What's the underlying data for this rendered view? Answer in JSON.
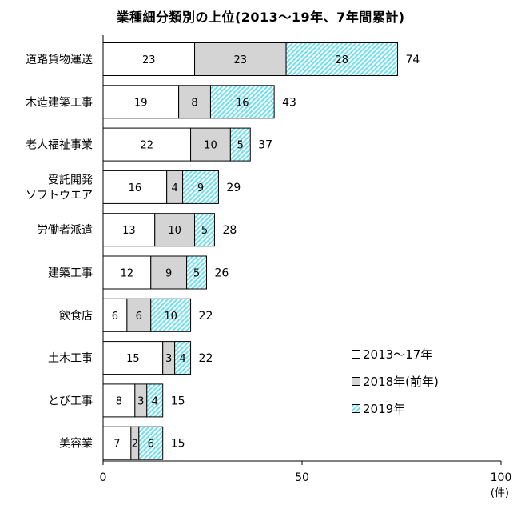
{
  "chart_data": {
    "type": "bar",
    "orientation": "horizontal",
    "stacked": true,
    "title": "業種細分類別の上位(2013～19年、7年間累計)",
    "categories": [
      "道路貨物運送",
      "木造建築工事",
      "老人福祉事業",
      "受託開発\nソフトウエア",
      "労働者派遣",
      "建築工事",
      "飲食店",
      "土木工事",
      "とび工事",
      "美容業"
    ],
    "series": [
      {
        "name": "2013～17年",
        "values": [
          23,
          19,
          22,
          16,
          13,
          12,
          6,
          15,
          8,
          7
        ],
        "color": "#ffffff"
      },
      {
        "name": "2018年(前年)",
        "values": [
          23,
          8,
          10,
          4,
          10,
          9,
          6,
          3,
          3,
          2
        ],
        "color": "#d4d4d4"
      },
      {
        "name": "2019年",
        "values": [
          28,
          16,
          5,
          9,
          5,
          5,
          10,
          4,
          4,
          6
        ],
        "color": "#6ee0ee"
      }
    ],
    "totals": [
      74,
      43,
      37,
      29,
      28,
      26,
      22,
      22,
      15,
      15
    ],
    "xlim": [
      0,
      100
    ],
    "xticks": [
      0,
      50,
      100
    ],
    "xunit": "(件)",
    "legend_position": "right",
    "grid": false
  }
}
